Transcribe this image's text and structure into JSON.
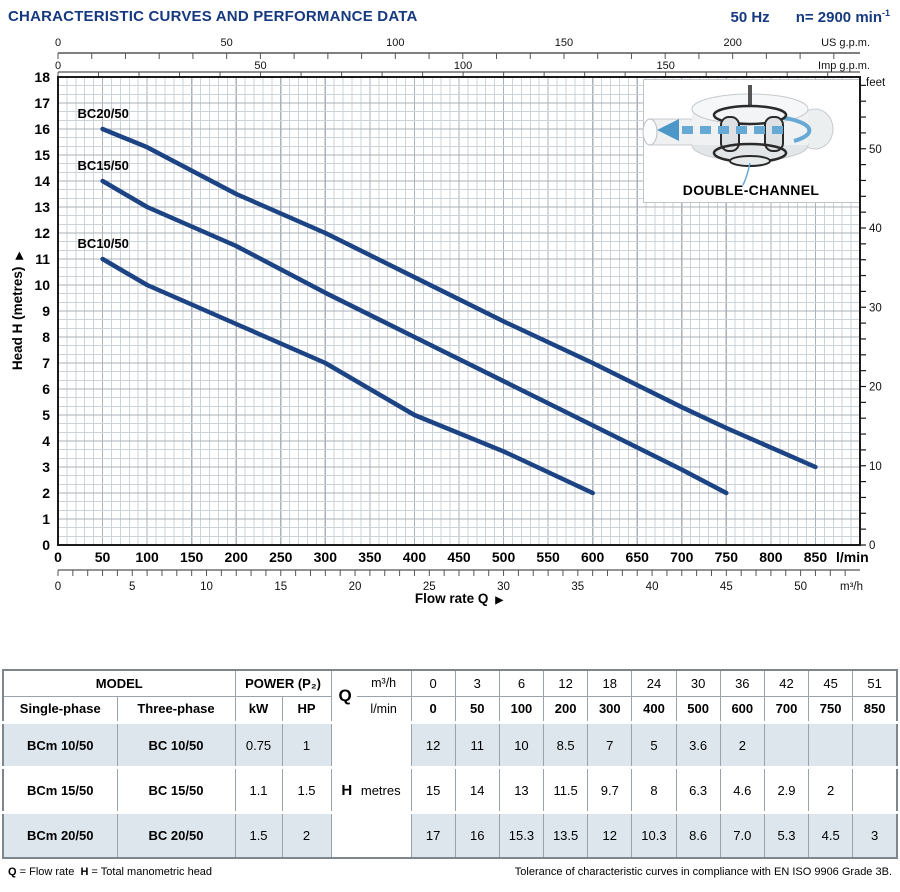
{
  "header": {
    "title": "CHARACTERISTIC CURVES AND PERFORMANCE DATA",
    "frequency": "50 Hz",
    "speed_prefix": "n= 2900 min",
    "speed_exponent": "-1"
  },
  "chart_data": {
    "type": "line",
    "title": "",
    "xlabel": "Flow rate Q",
    "ylabel": "Head H (metres)",
    "arrow": "▶",
    "x_axis": {
      "unit": "l/min",
      "min": 0,
      "max": 900,
      "major_step": 50,
      "minor_step": 10,
      "label_max": 850
    },
    "y_axis": {
      "unit": "metres",
      "min": 0,
      "max": 18,
      "major_step": 1,
      "minor_divisions": 3
    },
    "secondary_axes": {
      "m3h": {
        "unit": "m³/h",
        "lmin_per_unit": 16.6667,
        "minor_step": 1,
        "label_step": 5,
        "label_max": 50
      },
      "us_gpm": {
        "unit": "US g.p.m.",
        "lmin_per_unit": 3.7854,
        "minor_step": 10,
        "label_step": 50,
        "label_max": 200
      },
      "imp_gpm": {
        "unit": "Imp g.p.m.",
        "lmin_per_unit": 4.5461,
        "minor_step": 10,
        "label_step": 50,
        "label_max": 150
      },
      "feet": {
        "unit": "feet",
        "m_per_unit": 0.3048,
        "minor_step": 2,
        "label_step": 10,
        "label_max": 50
      }
    },
    "series": [
      {
        "name": "BC20/50",
        "points": [
          [
            50,
            16
          ],
          [
            100,
            15.3
          ],
          [
            200,
            13.5
          ],
          [
            300,
            12
          ],
          [
            400,
            10.3
          ],
          [
            500,
            8.6
          ],
          [
            600,
            7.0
          ],
          [
            700,
            5.3
          ],
          [
            750,
            4.5
          ],
          [
            850,
            3
          ]
        ]
      },
      {
        "name": "BC15/50",
        "points": [
          [
            50,
            14
          ],
          [
            100,
            13
          ],
          [
            200,
            11.5
          ],
          [
            300,
            9.7
          ],
          [
            400,
            8
          ],
          [
            500,
            6.3
          ],
          [
            600,
            4.6
          ],
          [
            700,
            2.9
          ],
          [
            750,
            2
          ]
        ]
      },
      {
        "name": "BC10/50",
        "points": [
          [
            50,
            11
          ],
          [
            100,
            10
          ],
          [
            200,
            8.5
          ],
          [
            300,
            7
          ],
          [
            400,
            5
          ],
          [
            500,
            3.6
          ],
          [
            600,
            2
          ]
        ]
      }
    ],
    "inset_label": "DOUBLE-CHANNEL",
    "colors": {
      "curve": "#1c4383",
      "grid_minor": "#ccd3d9",
      "grid_major": "#a9b1b9",
      "accent_blue": "#66a9d4",
      "accent_blue_dark": "#4d96c8",
      "title_blue": "#16397f"
    }
  },
  "table": {
    "header": {
      "model": "MODEL",
      "single_phase": "Single-phase",
      "three_phase": "Three-phase",
      "power": "POWER (P₂)",
      "kw": "kW",
      "hp": "HP",
      "q": "Q",
      "m3h": "m³/h",
      "lmin": "l/min",
      "m3h_values": [
        "0",
        "3",
        "6",
        "12",
        "18",
        "24",
        "30",
        "36",
        "42",
        "45",
        "51"
      ],
      "lmin_values": [
        "0",
        "50",
        "100",
        "200",
        "300",
        "400",
        "500",
        "600",
        "700",
        "750",
        "850"
      ]
    },
    "h_label": "H",
    "h_unit": "metres",
    "rows": [
      {
        "single": "BCm 10/50",
        "three": "BC 10/50",
        "kw": "0.75",
        "hp": "1",
        "values": [
          "12",
          "11",
          "10",
          "8.5",
          "7",
          "5",
          "3.6",
          "2",
          "",
          "",
          ""
        ],
        "shaded": true
      },
      {
        "single": "BCm 15/50",
        "three": "BC 15/50",
        "kw": "1.1",
        "hp": "1.5",
        "values": [
          "15",
          "14",
          "13",
          "11.5",
          "9.7",
          "8",
          "6.3",
          "4.6",
          "2.9",
          "2",
          ""
        ],
        "shaded": false
      },
      {
        "single": "BCm 20/50",
        "three": "BC 20/50",
        "kw": "1.5",
        "hp": "2",
        "values": [
          "17",
          "16",
          "15.3",
          "13.5",
          "12",
          "10.3",
          "8.6",
          "7.0",
          "5.3",
          "4.5",
          "3"
        ],
        "shaded": true
      }
    ]
  },
  "footer": {
    "q_sym": "Q",
    "q_def": "= Flow rate",
    "h_sym": "H",
    "h_def": "= Total manometric head",
    "tolerance": "Tolerance of characteristic curves in compliance with EN ISO 9906 Grade 3B."
  }
}
